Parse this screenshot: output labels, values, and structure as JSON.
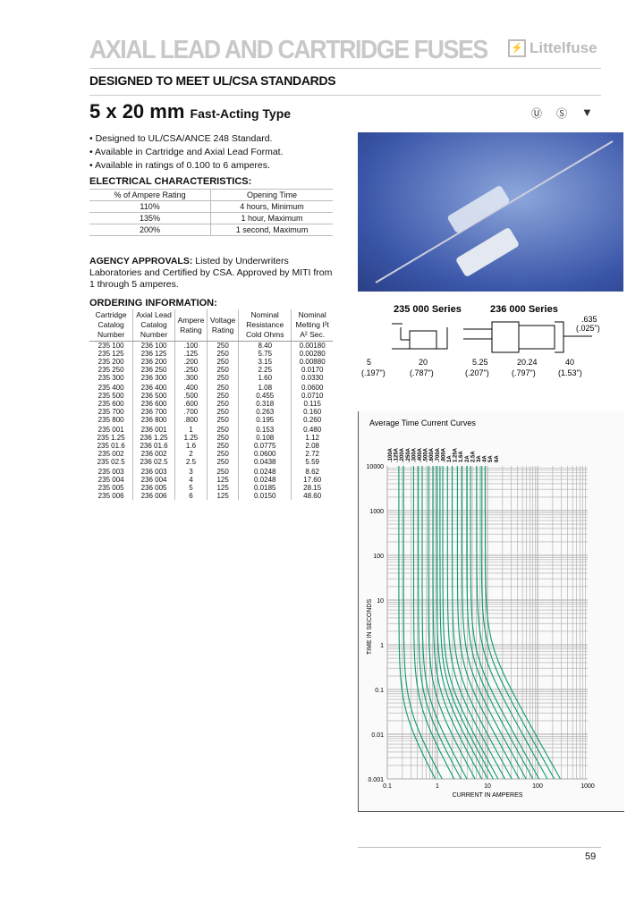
{
  "header": {
    "title": "AXIAL LEAD AND CARTRIDGE FUSES",
    "brand": "Littelfuse",
    "subtitle": "DESIGNED TO MEET UL/CSA STANDARDS",
    "size": "5 x 20 mm",
    "type": "Fast-Acting Type",
    "cert_marks": [
      "UL",
      "CSA",
      "MITI"
    ]
  },
  "bullets": [
    "• Designed to UL/CSA/ANCE 248 Standard.",
    "• Available in Cartridge and Axial Lead Format.",
    "• Available in ratings of 0.100 to 6 amperes."
  ],
  "electrical": {
    "heading": "ELECTRICAL CHARACTERISTICS:",
    "headers": [
      "% of Ampere Rating",
      "Opening Time"
    ],
    "rows": [
      [
        "110%",
        "4 hours, Minimum"
      ],
      [
        "135%",
        "1 hour, Maximum"
      ],
      [
        "200%",
        "1 second, Maximum"
      ]
    ]
  },
  "agency": {
    "label": "AGENCY APPROVALS:",
    "text": " Listed by Underwriters Laboratories and Certified by CSA. Approved by MITI from 1 through 5 amperes."
  },
  "ordering": {
    "heading": "ORDERING INFORMATION:",
    "headers": [
      "Cartridge Catalog Number",
      "Axial Lead Catalog Number",
      "Ampere Rating",
      "Voltage Rating",
      "Nominal Resistance Cold Ohms",
      "Nominal Melting I²t A² Sec."
    ],
    "rows": [
      [
        "235 100",
        "236 100",
        ".100",
        "250",
        "8.40",
        "0.00180"
      ],
      [
        "235 125",
        "236 125",
        ".125",
        "250",
        "5.75",
        "0.00280"
      ],
      [
        "235 200",
        "236 200",
        ".200",
        "250",
        "3.15",
        "0.00880"
      ],
      [
        "235 250",
        "236 250",
        ".250",
        "250",
        "2.25",
        "0.0170"
      ],
      [
        "235 300",
        "236 300",
        ".300",
        "250",
        "1.60",
        "0.0330"
      ],
      [
        "235 400",
        "236 400",
        ".400",
        "250",
        "1.08",
        "0.0600"
      ],
      [
        "235 500",
        "236 500",
        ".500",
        "250",
        "0.455",
        "0.0710"
      ],
      [
        "235 600",
        "236 600",
        ".600",
        "250",
        "0.318",
        "0.115"
      ],
      [
        "235 700",
        "236 700",
        ".700",
        "250",
        "0.263",
        "0.160"
      ],
      [
        "235 800",
        "236 800",
        ".800",
        "250",
        "0.195",
        "0.260"
      ],
      [
        "235 001",
        "236 001",
        "1",
        "250",
        "0.153",
        "0.480"
      ],
      [
        "235 1.25",
        "236 1.25",
        "1.25",
        "250",
        "0.108",
        "1.12"
      ],
      [
        "235 01.6",
        "236 01.6",
        "1.6",
        "250",
        "0.0775",
        "2.08"
      ],
      [
        "235 002",
        "236 002",
        "2",
        "250",
        "0.0600",
        "2.72"
      ],
      [
        "235 02.5",
        "236 02.5",
        "2.5",
        "250",
        "0.0438",
        "5.59"
      ],
      [
        "235 003",
        "236 003",
        "3",
        "250",
        "0.0248",
        "8.62"
      ],
      [
        "235 004",
        "236 004",
        "4",
        "125",
        "0.0248",
        "17.60"
      ],
      [
        "235 005",
        "236 005",
        "5",
        "125",
        "0.0185",
        "28.15"
      ],
      [
        "235 006",
        "236 006",
        "6",
        "125",
        "0.0150",
        "48.60"
      ]
    ]
  },
  "dimensions": {
    "series_a": "235 000 Series",
    "series_b": "236 000 Series",
    "a_height": "5",
    "a_height_in": "(.197\")",
    "a_length": "20",
    "a_length_in": "(.787\")",
    "b_wire": ".635",
    "b_wire_in": "(.025\")",
    "b_cap": "5.25",
    "b_cap_in": "(.207\")",
    "b_body": "20.24",
    "b_body_in": "(.797\")",
    "b_lead": "40",
    "b_lead_in": "(1.53\")"
  },
  "chart_data": {
    "type": "line",
    "title": "Average Time Current Curves",
    "xlabel": "CURRENT IN AMPERES",
    "ylabel": "TIME IN SECONDS",
    "xscale": "log",
    "yscale": "log",
    "xlim": [
      0.1,
      1000
    ],
    "ylim": [
      0.001,
      10000
    ],
    "xticks": [
      "0.1",
      "1",
      "10",
      "100",
      "1000"
    ],
    "yticks": [
      "10000",
      "1000",
      "100",
      "10",
      "1",
      "0.1",
      "0.01",
      "0.001"
    ],
    "grid": true,
    "series_labels": [
      ".100A",
      ".125A",
      ".200A",
      ".250A",
      ".300A",
      ".400A",
      ".500A",
      ".600A",
      ".700A",
      ".800A",
      "1A",
      "1.25A",
      "1.6A",
      "2A",
      "2.5A",
      "3A",
      "4A",
      "5A",
      "6A"
    ],
    "ratings": [
      0.1,
      0.125,
      0.2,
      0.25,
      0.3,
      0.4,
      0.5,
      0.6,
      0.7,
      0.8,
      1,
      1.25,
      1.6,
      2,
      2.5,
      3,
      4,
      5,
      6
    ],
    "color": "#0a9a70"
  },
  "page_number": "59"
}
